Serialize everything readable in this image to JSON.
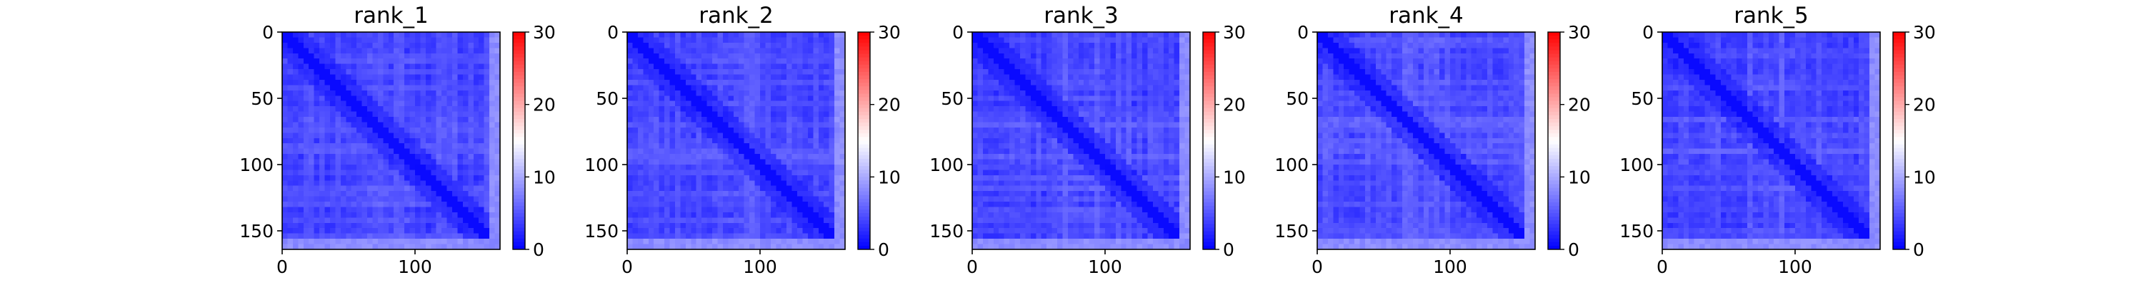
{
  "chart_data": [
    {
      "type": "heatmap",
      "title": "rank_1",
      "xlim": [
        0,
        164
      ],
      "ylim": [
        164,
        0
      ],
      "xticks": [
        0,
        100
      ],
      "xtick_labels": [
        "0",
        "100"
      ],
      "yticks": [
        0,
        50,
        100,
        150
      ],
      "ytick_labels": [
        "0",
        "50",
        "100",
        "150"
      ],
      "colorbar": {
        "min": 0,
        "max": 30,
        "ticks": [
          0,
          10,
          20,
          30
        ],
        "tick_labels": [
          "0",
          "10",
          "20",
          "30"
        ],
        "colormap": "bwr"
      },
      "matrix_description": "164x164 symmetric matrix, values mostly between 0 and 8, diagonal near 0",
      "grid": false,
      "seed": 11
    },
    {
      "type": "heatmap",
      "title": "rank_2",
      "xlim": [
        0,
        164
      ],
      "ylim": [
        164,
        0
      ],
      "xticks": [
        0,
        100
      ],
      "xtick_labels": [
        "0",
        "100"
      ],
      "yticks": [
        0,
        50,
        100,
        150
      ],
      "ytick_labels": [
        "0",
        "50",
        "100",
        "150"
      ],
      "colorbar": {
        "min": 0,
        "max": 30,
        "ticks": [
          0,
          10,
          20,
          30
        ],
        "tick_labels": [
          "0",
          "10",
          "20",
          "30"
        ],
        "colormap": "bwr"
      },
      "matrix_description": "164x164 symmetric matrix, values mostly between 0 and 8, diagonal near 0",
      "grid": false,
      "seed": 23
    },
    {
      "type": "heatmap",
      "title": "rank_3",
      "xlim": [
        0,
        164
      ],
      "ylim": [
        164,
        0
      ],
      "xticks": [
        0,
        100
      ],
      "xtick_labels": [
        "0",
        "100"
      ],
      "yticks": [
        0,
        50,
        100,
        150
      ],
      "ytick_labels": [
        "0",
        "50",
        "100",
        "150"
      ],
      "colorbar": {
        "min": 0,
        "max": 30,
        "ticks": [
          0,
          10,
          20,
          30
        ],
        "tick_labels": [
          "0",
          "10",
          "20",
          "30"
        ],
        "colormap": "bwr"
      },
      "matrix_description": "164x164 symmetric matrix, values mostly between 0 and 8, diagonal near 0",
      "grid": false,
      "seed": 37
    },
    {
      "type": "heatmap",
      "title": "rank_4",
      "xlim": [
        0,
        164
      ],
      "ylim": [
        164,
        0
      ],
      "xticks": [
        0,
        100
      ],
      "xtick_labels": [
        "0",
        "100"
      ],
      "yticks": [
        0,
        50,
        100,
        150
      ],
      "ytick_labels": [
        "0",
        "50",
        "100",
        "150"
      ],
      "colorbar": {
        "min": 0,
        "max": 30,
        "ticks": [
          0,
          10,
          20,
          30
        ],
        "tick_labels": [
          "0",
          "10",
          "20",
          "30"
        ],
        "colormap": "bwr"
      },
      "matrix_description": "164x164 symmetric matrix, values mostly between 0 and 10, diagonal near 0",
      "grid": false,
      "seed": 41
    },
    {
      "type": "heatmap",
      "title": "rank_5",
      "xlim": [
        0,
        164
      ],
      "ylim": [
        164,
        0
      ],
      "xticks": [
        0,
        100
      ],
      "xtick_labels": [
        "0",
        "100"
      ],
      "yticks": [
        0,
        50,
        100,
        150
      ],
      "ytick_labels": [
        "0",
        "50",
        "100",
        "150"
      ],
      "colorbar": {
        "min": 0,
        "max": 30,
        "ticks": [
          0,
          10,
          20,
          30
        ],
        "tick_labels": [
          "0",
          "10",
          "20",
          "30"
        ],
        "colormap": "bwr"
      },
      "matrix_description": "164x164 symmetric matrix, values mostly between 0 and 9, diagonal near 0",
      "grid": false,
      "seed": 53
    }
  ]
}
